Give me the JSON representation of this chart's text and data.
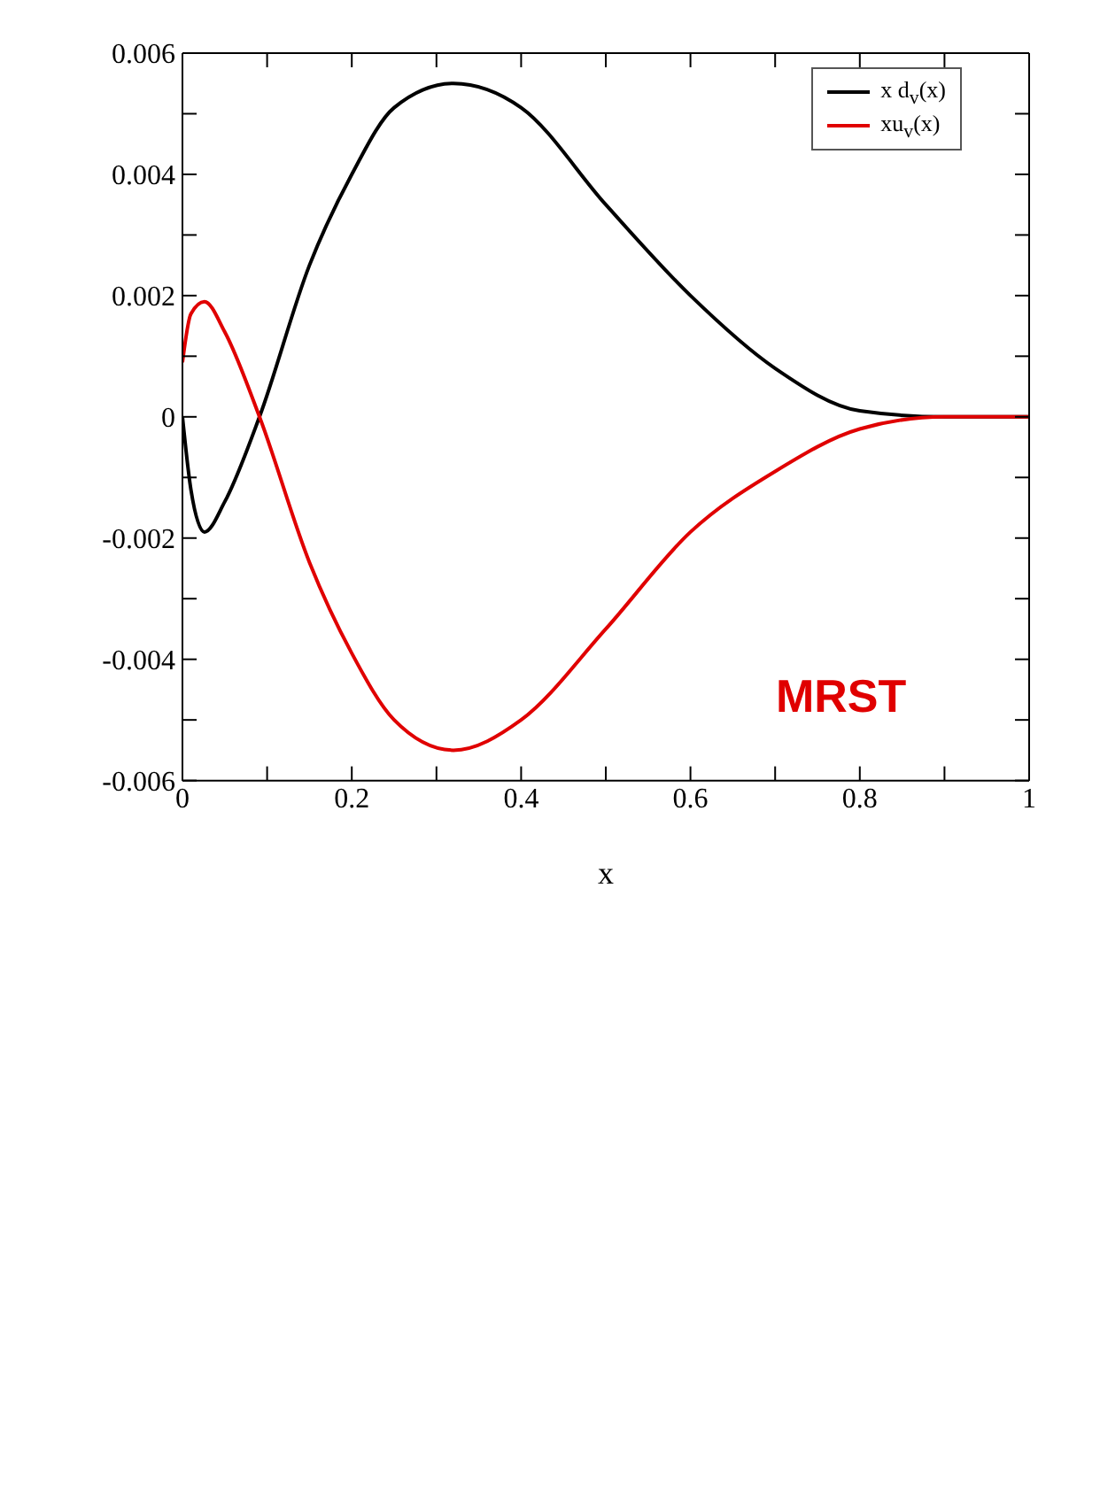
{
  "chart_data": {
    "type": "line",
    "xlabel": "x",
    "x": [
      0,
      0.01,
      0.026,
      0.05,
      0.091,
      0.15,
      0.2,
      0.25,
      0.32,
      0.4,
      0.5,
      0.6,
      0.7,
      0.8,
      0.9,
      1
    ],
    "series": [
      {
        "name": "x d$_{v}$(x)",
        "color": "#000000",
        "values": [
          0,
          -0.0012,
          -0.0019,
          -0.0014,
          0,
          0.0025,
          0.004,
          0.0051,
          0.0055,
          0.0051,
          0.0035,
          0.002,
          0.0008,
          0.0001,
          0,
          0
        ]
      },
      {
        "name": "xu$_{v}$(x)",
        "color": "#e00000",
        "values": [
          0.0009,
          0.0017,
          0.0019,
          0.0014,
          0,
          -0.0024,
          -0.0039,
          -0.005,
          -0.0055,
          -0.005,
          -0.0035,
          -0.0019,
          -0.0009,
          -0.0002,
          0,
          0
        ]
      }
    ],
    "xlim": [
      0,
      1
    ],
    "xticks": [
      0,
      {
        "value": 0.1,
        "label": null
      },
      0.2,
      {
        "value": 0.3,
        "label": null
      },
      0.4,
      {
        "value": 0.5,
        "label": null
      },
      0.6,
      {
        "value": 0.7,
        "label": null
      },
      0.8,
      {
        "value": 0.9,
        "label": null
      },
      1
    ],
    "ylim": [
      -0.006,
      0.006
    ],
    "yticks": [
      -0.006,
      {
        "value": -0.005,
        "label": null
      },
      -0.004,
      {
        "value": -0.003,
        "label": null
      },
      -0.002,
      {
        "value": -0.001,
        "label": null
      },
      0,
      {
        "value": 0.001,
        "label": null
      },
      0.002,
      {
        "value": 0.003,
        "label": null
      },
      0.004,
      {
        "value": 0.005,
        "label": null
      },
      0.006
    ],
    "annotations": [
      "MRST"
    ],
    "legend": "top right",
    "marker": "none",
    "line_style": "solid",
    "grid": false
  }
}
